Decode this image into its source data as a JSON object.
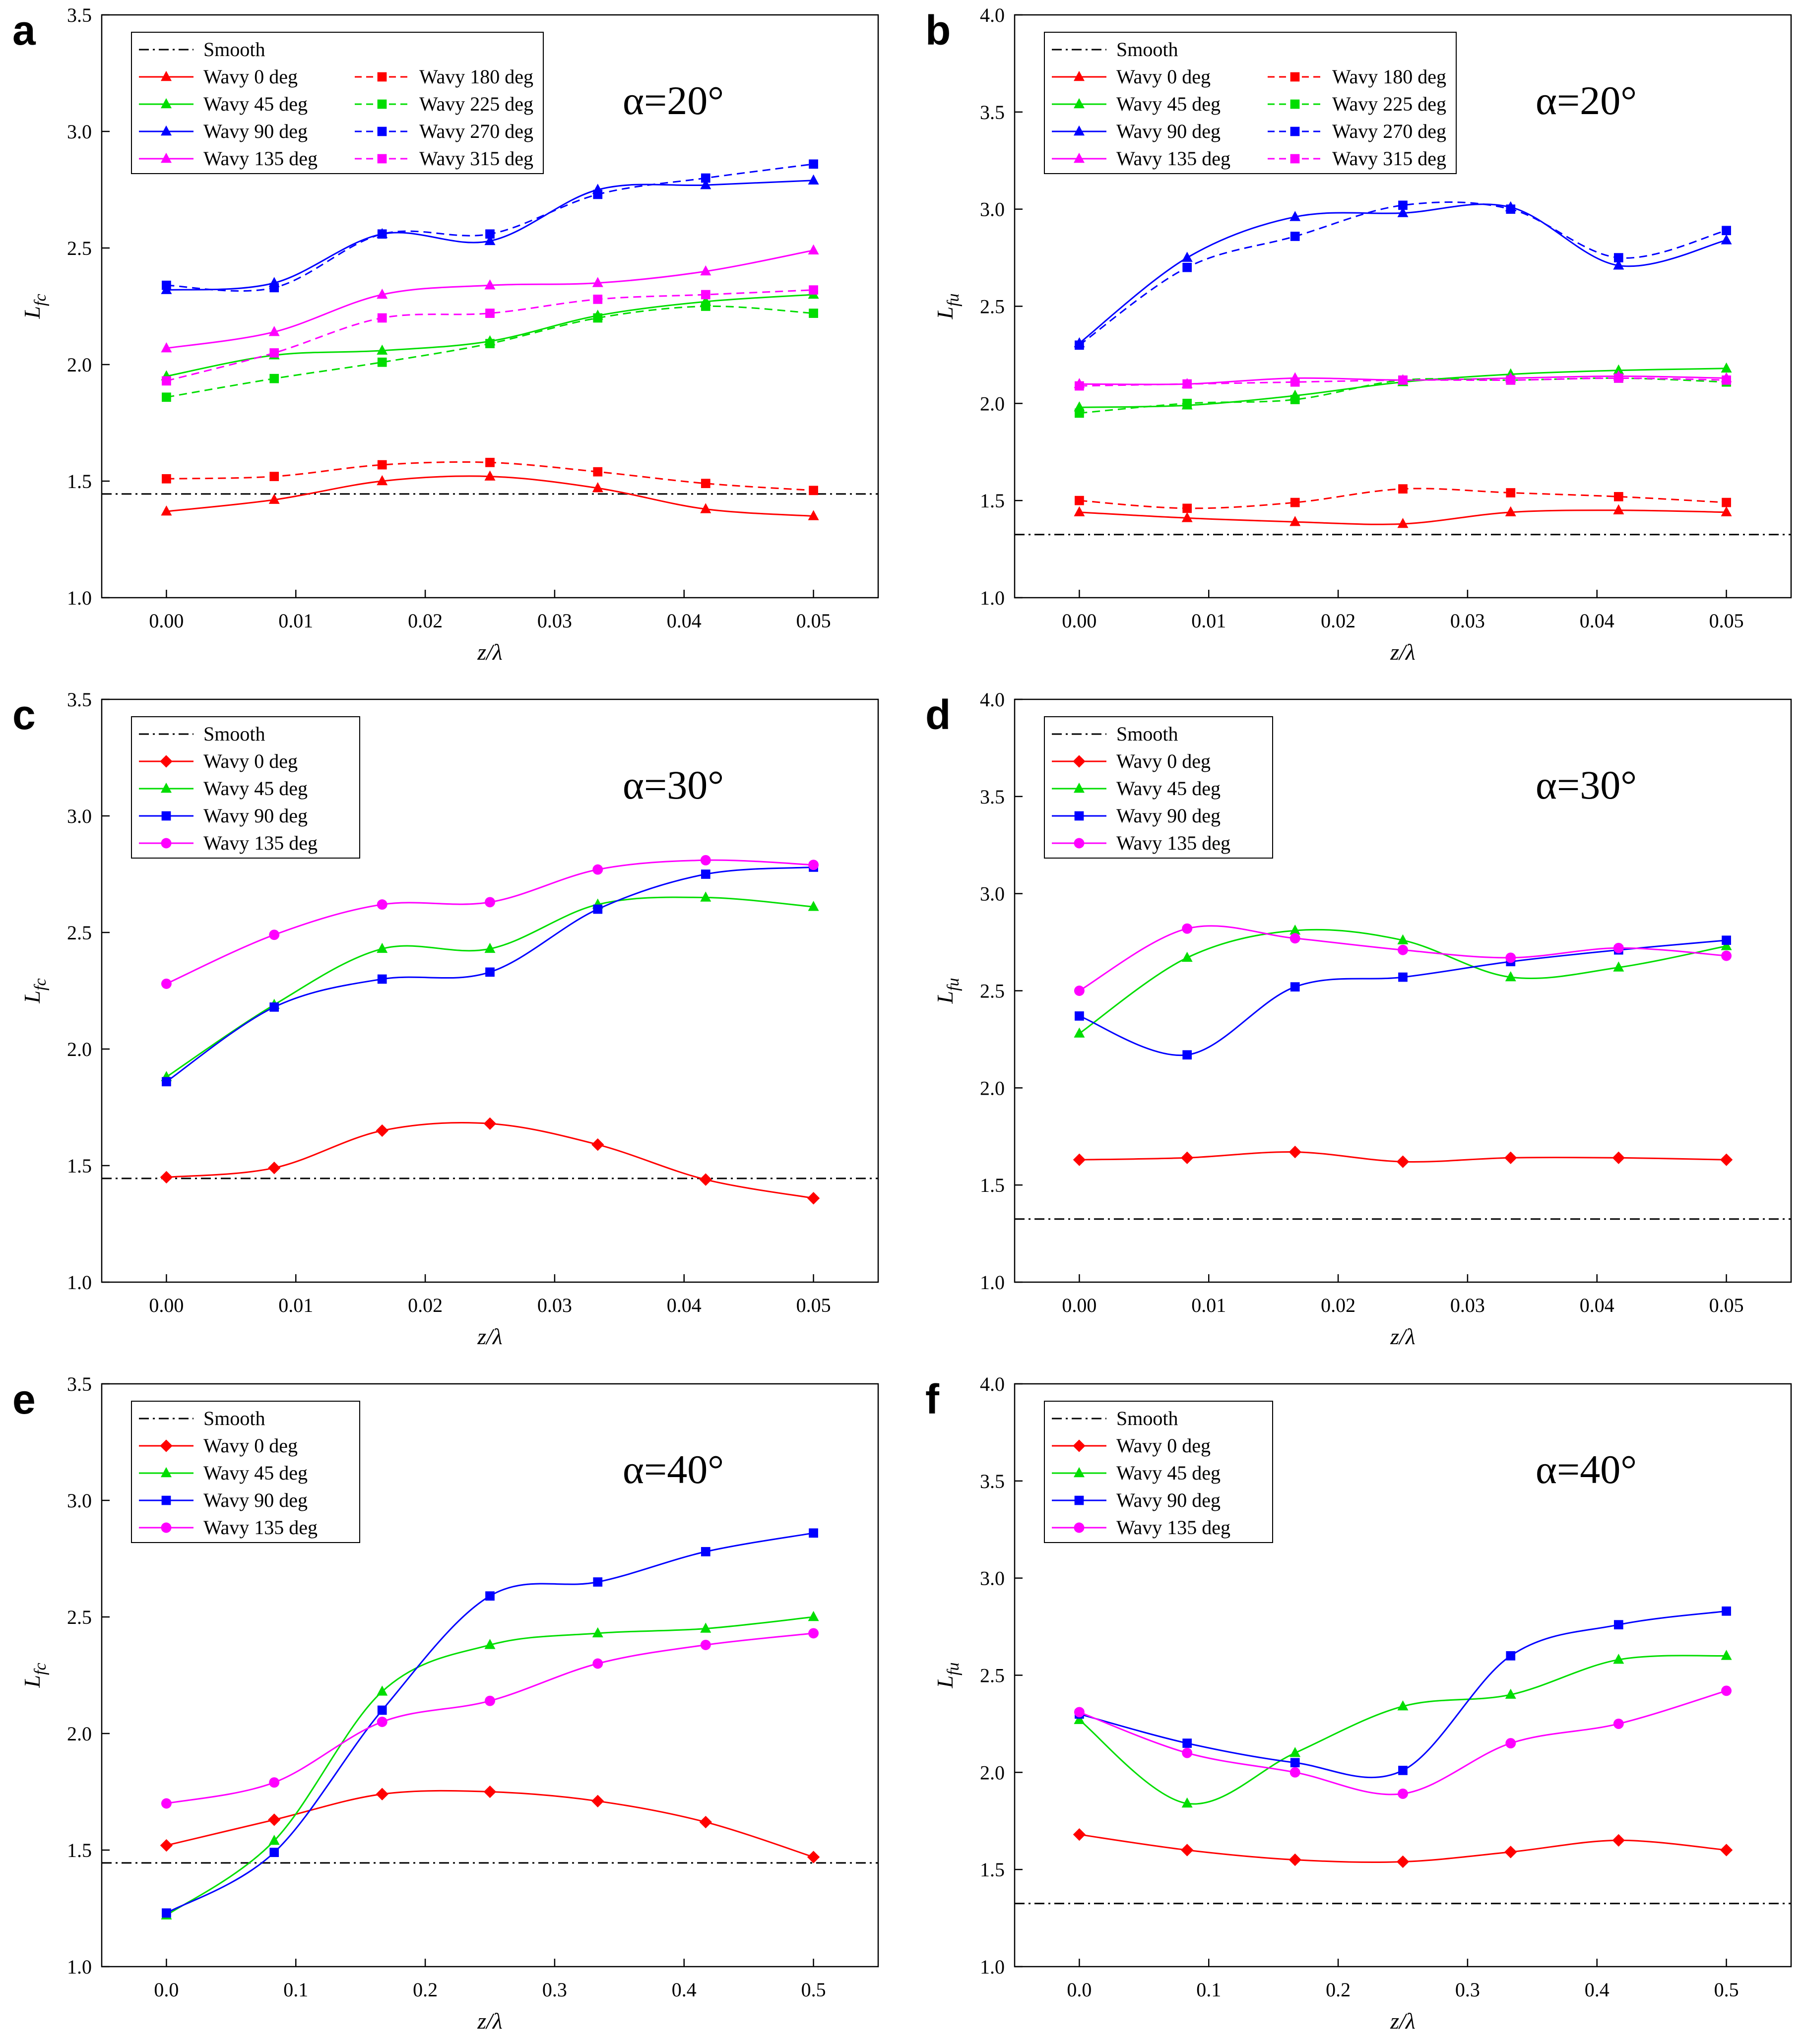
{
  "figure": {
    "colors": {
      "Smooth": "#000000",
      "red": "#ff0000",
      "green": "#00dd00",
      "blue": "#0000ff",
      "magenta": "#ff00ff"
    }
  },
  "chart_data": [
    {
      "panel": "a",
      "type": "line",
      "annotation": "α=20°",
      "xlabel": "z/λ",
      "ylabel": "Lfc",
      "ylabel_main": "L",
      "ylabel_sub": "fc",
      "xlim": [
        -0.005,
        0.055
      ],
      "ylim": [
        1.0,
        3.5
      ],
      "xticks": [
        0.0,
        0.01,
        0.02,
        0.03,
        0.04,
        0.05
      ],
      "xtick_labels": [
        "0.00",
        "0.01",
        "0.02",
        "0.03",
        "0.04",
        "0.05"
      ],
      "yticks": [
        1.0,
        1.5,
        2.0,
        2.5,
        3.0,
        3.5
      ],
      "ytick_labels": [
        "1.0",
        "1.5",
        "2.0",
        "2.5",
        "3.0",
        "3.5"
      ],
      "x": [
        0.0,
        0.00833,
        0.01667,
        0.025,
        0.03333,
        0.04167,
        0.05
      ],
      "smooth": {
        "name": "Smooth",
        "value": 1.445
      },
      "legend_columns": 2,
      "series": [
        {
          "name": "Wavy 0 deg",
          "color": "red",
          "marker": "triangle",
          "dashed": false,
          "values": [
            1.37,
            1.42,
            1.5,
            1.52,
            1.47,
            1.38,
            1.35
          ]
        },
        {
          "name": "Wavy 45 deg",
          "color": "green",
          "marker": "triangle",
          "dashed": false,
          "values": [
            1.95,
            2.04,
            2.06,
            2.1,
            2.21,
            2.27,
            2.3
          ]
        },
        {
          "name": "Wavy 90 deg",
          "color": "blue",
          "marker": "triangle",
          "dashed": false,
          "values": [
            2.32,
            2.35,
            2.56,
            2.53,
            2.75,
            2.77,
            2.79
          ]
        },
        {
          "name": "Wavy 135 deg",
          "color": "magenta",
          "marker": "triangle",
          "dashed": false,
          "values": [
            2.07,
            2.14,
            2.3,
            2.34,
            2.35,
            2.4,
            2.49
          ]
        },
        {
          "name": "Wavy 180 deg",
          "color": "red",
          "marker": "square",
          "dashed": true,
          "values": [
            1.51,
            1.52,
            1.57,
            1.58,
            1.54,
            1.49,
            1.46
          ]
        },
        {
          "name": "Wavy 225 deg",
          "color": "green",
          "marker": "square",
          "dashed": true,
          "values": [
            1.86,
            1.94,
            2.01,
            2.09,
            2.2,
            2.25,
            2.22
          ]
        },
        {
          "name": "Wavy 270 deg",
          "color": "blue",
          "marker": "square",
          "dashed": true,
          "values": [
            2.34,
            2.33,
            2.56,
            2.56,
            2.73,
            2.8,
            2.86
          ]
        },
        {
          "name": "Wavy 315 deg",
          "color": "magenta",
          "marker": "square",
          "dashed": true,
          "values": [
            1.93,
            2.05,
            2.2,
            2.22,
            2.28,
            2.3,
            2.32
          ]
        }
      ]
    },
    {
      "panel": "b",
      "type": "line",
      "annotation": "α=20°",
      "xlabel": "z/λ",
      "ylabel": "Lfu",
      "ylabel_main": "L",
      "ylabel_sub": "fu",
      "xlim": [
        -0.005,
        0.055
      ],
      "ylim": [
        1.0,
        4.0
      ],
      "xticks": [
        0.0,
        0.01,
        0.02,
        0.03,
        0.04,
        0.05
      ],
      "xtick_labels": [
        "0.00",
        "0.01",
        "0.02",
        "0.03",
        "0.04",
        "0.05"
      ],
      "yticks": [
        1.0,
        1.5,
        2.0,
        2.5,
        3.0,
        3.5,
        4.0
      ],
      "ytick_labels": [
        "1.0",
        "1.5",
        "2.0",
        "2.5",
        "3.0",
        "3.5",
        "4.0"
      ],
      "x": [
        0.0,
        0.00833,
        0.01667,
        0.025,
        0.03333,
        0.04167,
        0.05
      ],
      "smooth": {
        "name": "Smooth",
        "value": 1.325
      },
      "legend_columns": 2,
      "series": [
        {
          "name": "Wavy 0 deg",
          "color": "red",
          "marker": "triangle",
          "dashed": false,
          "values": [
            1.44,
            1.41,
            1.39,
            1.38,
            1.44,
            1.45,
            1.44
          ]
        },
        {
          "name": "Wavy 45 deg",
          "color": "green",
          "marker": "triangle",
          "dashed": false,
          "values": [
            1.98,
            1.99,
            2.04,
            2.11,
            2.15,
            2.17,
            2.18
          ]
        },
        {
          "name": "Wavy 90 deg",
          "color": "blue",
          "marker": "triangle",
          "dashed": false,
          "values": [
            2.31,
            2.75,
            2.96,
            2.98,
            3.01,
            2.71,
            2.84
          ]
        },
        {
          "name": "Wavy 135 deg",
          "color": "magenta",
          "marker": "triangle",
          "dashed": false,
          "values": [
            2.1,
            2.1,
            2.13,
            2.12,
            2.13,
            2.14,
            2.13
          ]
        },
        {
          "name": "Wavy 180 deg",
          "color": "red",
          "marker": "square",
          "dashed": true,
          "values": [
            1.5,
            1.46,
            1.49,
            1.56,
            1.54,
            1.52,
            1.49
          ]
        },
        {
          "name": "Wavy 225 deg",
          "color": "green",
          "marker": "square",
          "dashed": true,
          "values": [
            1.95,
            2.0,
            2.02,
            2.12,
            2.12,
            2.13,
            2.11
          ]
        },
        {
          "name": "Wavy 270 deg",
          "color": "blue",
          "marker": "square",
          "dashed": true,
          "values": [
            2.3,
            2.7,
            2.86,
            3.02,
            3.0,
            2.75,
            2.89
          ]
        },
        {
          "name": "Wavy 315 deg",
          "color": "magenta",
          "marker": "square",
          "dashed": true,
          "values": [
            2.09,
            2.1,
            2.11,
            2.12,
            2.12,
            2.13,
            2.12
          ]
        }
      ]
    },
    {
      "panel": "c",
      "type": "line",
      "annotation": "α=30°",
      "xlabel": "z/λ",
      "ylabel": "Lfc",
      "ylabel_main": "L",
      "ylabel_sub": "fc",
      "xlim": [
        -0.005,
        0.055
      ],
      "ylim": [
        1.0,
        3.5
      ],
      "xticks": [
        0.0,
        0.01,
        0.02,
        0.03,
        0.04,
        0.05
      ],
      "xtick_labels": [
        "0.00",
        "0.01",
        "0.02",
        "0.03",
        "0.04",
        "0.05"
      ],
      "yticks": [
        1.0,
        1.5,
        2.0,
        2.5,
        3.0,
        3.5
      ],
      "ytick_labels": [
        "1.0",
        "1.5",
        "2.0",
        "2.5",
        "3.0",
        "3.5"
      ],
      "x": [
        0.0,
        0.00833,
        0.01667,
        0.025,
        0.03333,
        0.04167,
        0.05
      ],
      "smooth": {
        "name": "Smooth",
        "value": 1.445
      },
      "legend_columns": 1,
      "series": [
        {
          "name": "Wavy 0 deg",
          "color": "red",
          "marker": "diamond",
          "dashed": false,
          "values": [
            1.45,
            1.49,
            1.65,
            1.68,
            1.59,
            1.44,
            1.36
          ]
        },
        {
          "name": "Wavy 45 deg",
          "color": "green",
          "marker": "triangle",
          "dashed": false,
          "values": [
            1.88,
            2.19,
            2.43,
            2.43,
            2.62,
            2.65,
            2.61
          ]
        },
        {
          "name": "Wavy 90 deg",
          "color": "blue",
          "marker": "square",
          "dashed": false,
          "values": [
            1.86,
            2.18,
            2.3,
            2.33,
            2.6,
            2.75,
            2.78
          ]
        },
        {
          "name": "Wavy 135 deg",
          "color": "magenta",
          "marker": "circle",
          "dashed": false,
          "values": [
            2.28,
            2.49,
            2.62,
            2.63,
            2.77,
            2.81,
            2.79
          ]
        }
      ]
    },
    {
      "panel": "d",
      "type": "line",
      "annotation": "α=30°",
      "xlabel": "z/λ",
      "ylabel": "Lfu",
      "ylabel_main": "L",
      "ylabel_sub": "fu",
      "xlim": [
        -0.005,
        0.055
      ],
      "ylim": [
        1.0,
        4.0
      ],
      "xticks": [
        0.0,
        0.01,
        0.02,
        0.03,
        0.04,
        0.05
      ],
      "xtick_labels": [
        "0.00",
        "0.01",
        "0.02",
        "0.03",
        "0.04",
        "0.05"
      ],
      "yticks": [
        1.0,
        1.5,
        2.0,
        2.5,
        3.0,
        3.5,
        4.0
      ],
      "ytick_labels": [
        "1.0",
        "1.5",
        "2.0",
        "2.5",
        "3.0",
        "3.5",
        "4.0"
      ],
      "x": [
        0.0,
        0.00833,
        0.01667,
        0.025,
        0.03333,
        0.04167,
        0.05
      ],
      "smooth": {
        "name": "Smooth",
        "value": 1.325
      },
      "legend_columns": 1,
      "series": [
        {
          "name": "Wavy 0 deg",
          "color": "red",
          "marker": "diamond",
          "dashed": false,
          "values": [
            1.63,
            1.64,
            1.67,
            1.62,
            1.64,
            1.64,
            1.63
          ]
        },
        {
          "name": "Wavy 45 deg",
          "color": "green",
          "marker": "triangle",
          "dashed": false,
          "values": [
            2.28,
            2.67,
            2.81,
            2.76,
            2.57,
            2.62,
            2.73
          ]
        },
        {
          "name": "Wavy 90 deg",
          "color": "blue",
          "marker": "square",
          "dashed": false,
          "values": [
            2.37,
            2.17,
            2.52,
            2.57,
            2.65,
            2.71,
            2.76
          ]
        },
        {
          "name": "Wavy 135 deg",
          "color": "magenta",
          "marker": "circle",
          "dashed": false,
          "values": [
            2.5,
            2.82,
            2.77,
            2.71,
            2.67,
            2.72,
            2.68
          ]
        }
      ]
    },
    {
      "panel": "e",
      "type": "line",
      "annotation": "α=40°",
      "xlabel": "z/λ",
      "ylabel": "Lfc",
      "ylabel_main": "L",
      "ylabel_sub": "fc",
      "xlim": [
        -0.05,
        0.55
      ],
      "ylim": [
        1.0,
        3.5
      ],
      "xticks": [
        0.0,
        0.1,
        0.2,
        0.3,
        0.4,
        0.5
      ],
      "xtick_labels": [
        "0.0",
        "0.1",
        "0.2",
        "0.3",
        "0.4",
        "0.5"
      ],
      "yticks": [
        1.0,
        1.5,
        2.0,
        2.5,
        3.0,
        3.5
      ],
      "ytick_labels": [
        "1.0",
        "1.5",
        "2.0",
        "2.5",
        "3.0",
        "3.5"
      ],
      "x": [
        0.0,
        0.0833,
        0.1667,
        0.25,
        0.3333,
        0.4167,
        0.5
      ],
      "smooth": {
        "name": "Smooth",
        "value": 1.445
      },
      "legend_columns": 1,
      "series": [
        {
          "name": "Wavy 0 deg",
          "color": "red",
          "marker": "diamond",
          "dashed": false,
          "values": [
            1.52,
            1.63,
            1.74,
            1.75,
            1.71,
            1.62,
            1.47
          ]
        },
        {
          "name": "Wavy 45 deg",
          "color": "green",
          "marker": "triangle",
          "dashed": false,
          "values": [
            1.22,
            1.54,
            2.18,
            2.38,
            2.43,
            2.45,
            2.5
          ]
        },
        {
          "name": "Wavy 90 deg",
          "color": "blue",
          "marker": "square",
          "dashed": false,
          "values": [
            1.23,
            1.49,
            2.1,
            2.59,
            2.65,
            2.78,
            2.86
          ]
        },
        {
          "name": "Wavy 135 deg",
          "color": "magenta",
          "marker": "circle",
          "dashed": false,
          "values": [
            1.7,
            1.79,
            2.05,
            2.14,
            2.3,
            2.38,
            2.43
          ]
        }
      ]
    },
    {
      "panel": "f",
      "type": "line",
      "annotation": "α=40°",
      "xlabel": "z/λ",
      "ylabel": "Lfu",
      "ylabel_main": "L",
      "ylabel_sub": "fu",
      "xlim": [
        -0.05,
        0.55
      ],
      "ylim": [
        1.0,
        4.0
      ],
      "xticks": [
        0.0,
        0.1,
        0.2,
        0.3,
        0.4,
        0.5
      ],
      "xtick_labels": [
        "0.0",
        "0.1",
        "0.2",
        "0.3",
        "0.4",
        "0.5"
      ],
      "yticks": [
        1.0,
        1.5,
        2.0,
        2.5,
        3.0,
        3.5,
        4.0
      ],
      "ytick_labels": [
        "1.0",
        "1.5",
        "2.0",
        "2.5",
        "3.0",
        "3.5",
        "4.0"
      ],
      "x": [
        0.0,
        0.0833,
        0.1667,
        0.25,
        0.3333,
        0.4167,
        0.5
      ],
      "smooth": {
        "name": "Smooth",
        "value": 1.325
      },
      "legend_columns": 1,
      "series": [
        {
          "name": "Wavy 0 deg",
          "color": "red",
          "marker": "diamond",
          "dashed": false,
          "values": [
            1.68,
            1.6,
            1.55,
            1.54,
            1.59,
            1.65,
            1.6
          ]
        },
        {
          "name": "Wavy 45 deg",
          "color": "green",
          "marker": "triangle",
          "dashed": false,
          "values": [
            2.27,
            1.84,
            2.1,
            2.34,
            2.4,
            2.58,
            2.6
          ]
        },
        {
          "name": "Wavy 90 deg",
          "color": "blue",
          "marker": "square",
          "dashed": false,
          "values": [
            2.3,
            2.15,
            2.05,
            2.01,
            2.6,
            2.76,
            2.83
          ]
        },
        {
          "name": "Wavy 135 deg",
          "color": "magenta",
          "marker": "circle",
          "dashed": false,
          "values": [
            2.31,
            2.1,
            2.0,
            1.89,
            2.15,
            2.25,
            2.42
          ]
        }
      ]
    }
  ]
}
